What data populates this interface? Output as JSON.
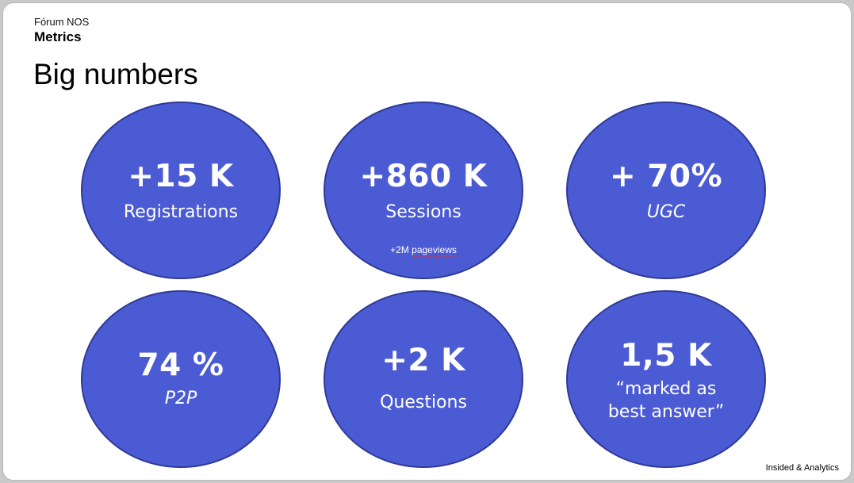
{
  "header": {
    "kicker": "Fórum NOS",
    "section": "Metrics",
    "title": "Big numbers"
  },
  "metrics": [
    {
      "value": "+15 K",
      "label": "Registrations"
    },
    {
      "value": "+860 K",
      "label": "Sessions",
      "note_prefix": "+2M ",
      "note_word": "pageviews"
    },
    {
      "value": "+ 70%",
      "label": "UGC"
    },
    {
      "value": "74 %",
      "label": "P2P"
    },
    {
      "value": "+2 K",
      "label": "Questions"
    },
    {
      "value": "1,5 K",
      "label_line1": "“marked as",
      "label_line2": "best answer”"
    }
  ],
  "footer": {
    "text": "Insided & Analytics"
  },
  "colors": {
    "bubble_fill": "#4b5bd4",
    "bubble_border": "#2f3a96",
    "text_on_bubble": "#ffffff"
  }
}
